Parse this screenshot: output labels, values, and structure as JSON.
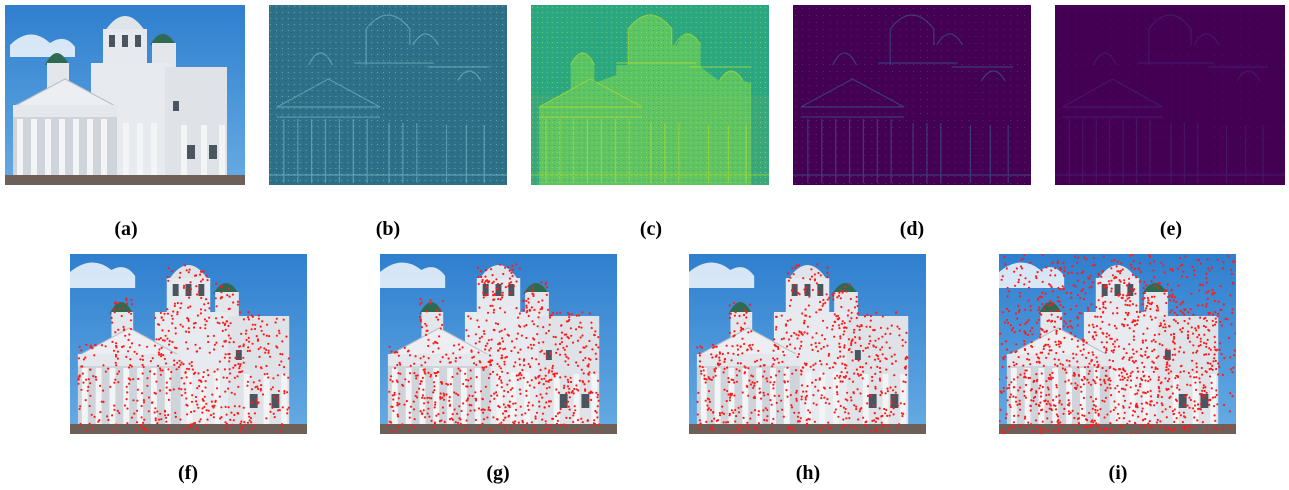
{
  "figure": {
    "top_row": [
      {
        "label": "(a)",
        "kind": "photo"
      },
      {
        "label": "(b)",
        "kind": "feature-map-blue"
      },
      {
        "label": "(c)",
        "kind": "feature-map-green"
      },
      {
        "label": "(d)",
        "kind": "feature-map-dark"
      },
      {
        "label": "(e)",
        "kind": "feature-map-dark-sparse"
      }
    ],
    "bottom_row": [
      {
        "label": "(f)",
        "kind": "keypoints-photo"
      },
      {
        "label": "(g)",
        "kind": "keypoints-photo"
      },
      {
        "label": "(h)",
        "kind": "keypoints-photo"
      },
      {
        "label": "(i)",
        "kind": "keypoints-photo-sky"
      }
    ],
    "colors": {
      "sky": "#3f8fd6",
      "building": "#e4e6ea",
      "dome": "#2f6b53",
      "keypoint": "#ff1a1a",
      "map_blue": "#2e7088",
      "map_green": "#4fc278",
      "map_dark": "#440154"
    }
  }
}
